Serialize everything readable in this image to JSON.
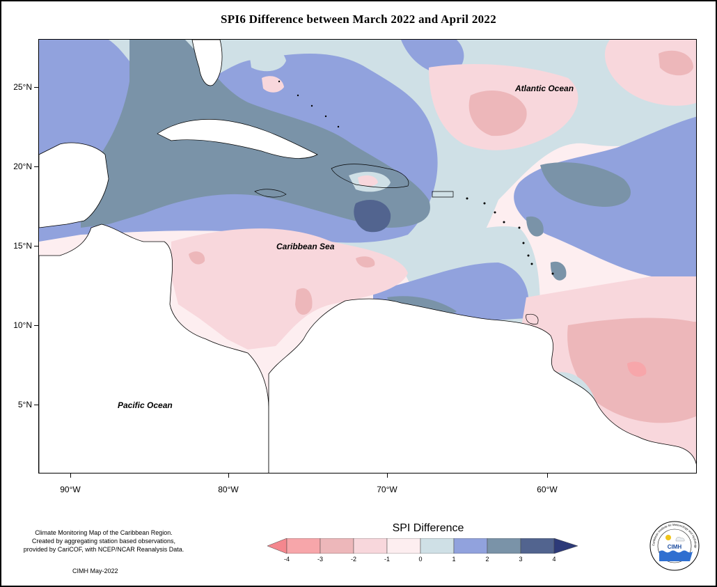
{
  "title": "SPI6 Difference between March 2022 and April 2022",
  "map": {
    "lat_labels": [
      "25°N",
      "20°N",
      "15°N",
      "10°N",
      "5°N"
    ],
    "lon_labels": [
      "90°W",
      "80°W",
      "70°W",
      "60°W"
    ],
    "places": {
      "atlantic": "Atlantic Ocean",
      "caribbean": "Caribbean Sea",
      "pacific": "Pacific Ocean"
    },
    "palette": {
      "m4": "#f7a6aa",
      "m3": "#edb7ba",
      "m2": "#f8d7dc",
      "m1": "#fdeef0",
      "p0": "#cfe0e6",
      "p1": "#91a2dd",
      "p2": "#7a93a8",
      "p3": "#52648f",
      "land": "#ffffff"
    }
  },
  "legend": {
    "title": "SPI Difference",
    "labels": [
      "-4",
      "-3",
      "-2",
      "-1",
      "0",
      "1",
      "2",
      "3",
      "4"
    ],
    "colors": [
      "#f4878e",
      "#edb7ba",
      "#f8d7dc",
      "#fdeef0",
      "#cfe0e6",
      "#91a2dd",
      "#7a93a8",
      "#52648f",
      "#2d3a78"
    ]
  },
  "credit": {
    "line1": "Climate Monitoring Map of the Caribbean Region.",
    "line2": "Created by aggregating station based observations,",
    "line3": "provided by CariCOF, with NCEP/NCAR Reanalysis Data.",
    "stamp": "CIMH May-2022"
  },
  "logo": {
    "text": "CIMH",
    "ring": "Caribbean Institute for Meteorology and Hydrology"
  }
}
